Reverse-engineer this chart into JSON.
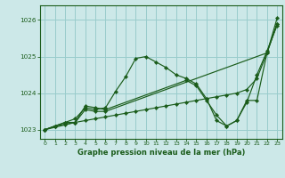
{
  "title": "Graphe pression niveau de la mer (hPa)",
  "background_color": "#cce8e8",
  "grid_color": "#99cccc",
  "line_color": "#1a5c1a",
  "xlim": [
    -0.5,
    23.5
  ],
  "ylim": [
    1022.75,
    1026.4
  ],
  "yticks": [
    1023,
    1024,
    1025,
    1026
  ],
  "xticks": [
    0,
    1,
    2,
    3,
    4,
    5,
    6,
    7,
    8,
    9,
    10,
    11,
    12,
    13,
    14,
    15,
    16,
    17,
    18,
    19,
    20,
    21,
    22,
    23
  ],
  "series": [
    {
      "x": [
        0,
        1,
        2,
        3,
        4,
        5,
        6,
        7,
        8,
        9,
        10,
        11,
        12,
        13,
        14,
        15,
        16,
        17,
        18,
        19,
        20,
        21,
        22,
        23
      ],
      "y": [
        1023.0,
        1023.1,
        1023.15,
        1023.2,
        1023.25,
        1023.3,
        1023.35,
        1023.4,
        1023.45,
        1023.5,
        1023.55,
        1023.6,
        1023.65,
        1023.7,
        1023.75,
        1023.8,
        1023.85,
        1023.9,
        1023.95,
        1024.0,
        1024.1,
        1024.4,
        1025.1,
        1025.9
      ]
    },
    {
      "x": [
        0,
        1,
        2,
        3,
        4,
        5,
        6,
        7,
        8,
        9,
        10,
        11,
        12,
        13,
        14,
        15,
        16,
        17,
        18,
        19,
        20,
        21,
        22,
        23
      ],
      "y": [
        1023.0,
        1023.1,
        1023.2,
        1023.3,
        1023.6,
        1023.55,
        1023.6,
        1024.05,
        1024.45,
        1024.95,
        1025.0,
        1024.85,
        1024.7,
        1024.5,
        1024.4,
        1024.25,
        1023.85,
        1023.25,
        1023.1,
        1023.25,
        1023.75,
        1024.5,
        1025.15,
        1025.85
      ]
    },
    {
      "x": [
        0,
        3,
        4,
        5,
        6,
        14,
        15,
        16,
        17,
        18,
        19,
        20,
        21,
        22,
        23
      ],
      "y": [
        1023.0,
        1023.2,
        1023.65,
        1023.6,
        1023.55,
        1024.35,
        1024.2,
        1023.8,
        1023.4,
        1023.1,
        1023.25,
        1023.8,
        1023.8,
        1025.1,
        1026.05
      ]
    },
    {
      "x": [
        0,
        1,
        2,
        3,
        4,
        5,
        6,
        22,
        23
      ],
      "y": [
        1023.0,
        1023.1,
        1023.2,
        1023.2,
        1023.55,
        1023.5,
        1023.5,
        1025.1,
        1025.9
      ]
    }
  ]
}
